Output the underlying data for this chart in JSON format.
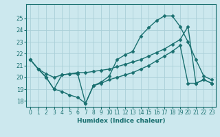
{
  "xlabel": "Humidex (Indice chaleur)",
  "background_color": "#cce8ee",
  "grid_color": "#aacfd8",
  "line_color": "#1a7070",
  "xlim_min": -0.5,
  "xlim_max": 23.5,
  "ylim_min": 17.5,
  "ylim_max": 26.2,
  "yticks": [
    18,
    19,
    20,
    21,
    22,
    23,
    24,
    25
  ],
  "xticks": [
    0,
    1,
    2,
    3,
    4,
    5,
    6,
    7,
    8,
    9,
    10,
    11,
    12,
    13,
    14,
    15,
    16,
    17,
    18,
    19,
    20,
    21,
    22,
    23
  ],
  "curve_top_x": [
    0,
    1,
    2,
    3,
    4,
    5,
    6,
    7,
    8,
    9,
    10,
    11,
    12,
    13,
    14,
    15,
    16,
    17,
    18,
    19,
    20,
    21,
    22,
    23
  ],
  "curve_top_y": [
    21.5,
    20.7,
    20.0,
    19.0,
    20.2,
    20.3,
    20.3,
    17.8,
    19.3,
    19.6,
    20.1,
    21.5,
    21.9,
    22.2,
    23.5,
    24.2,
    24.8,
    25.2,
    25.2,
    24.3,
    23.0,
    21.5,
    20.1,
    19.8
  ],
  "curve_diag_x": [
    0,
    1,
    2,
    3,
    4,
    5,
    6,
    7,
    8,
    9,
    10,
    11,
    12,
    13,
    14,
    15,
    16,
    17,
    18,
    19,
    20,
    21,
    22,
    23
  ],
  "curve_diag_y": [
    21.5,
    20.7,
    20.3,
    20.0,
    20.2,
    20.3,
    20.4,
    20.4,
    20.5,
    20.6,
    20.7,
    20.9,
    21.1,
    21.3,
    21.5,
    21.8,
    22.1,
    22.4,
    22.8,
    23.2,
    24.3,
    19.5,
    19.8,
    19.5
  ],
  "curve_bot_x": [
    0,
    1,
    2,
    3,
    4,
    5,
    6,
    7,
    8,
    9,
    10,
    11,
    12,
    13,
    14,
    15,
    16,
    17,
    18,
    19,
    20,
    21,
    22,
    23
  ],
  "curve_bot_y": [
    21.5,
    20.7,
    20.0,
    19.0,
    18.8,
    18.5,
    18.3,
    17.8,
    19.3,
    19.5,
    19.8,
    20.0,
    20.2,
    20.4,
    20.7,
    21.0,
    21.4,
    21.8,
    22.2,
    22.7,
    19.5,
    19.5,
    19.8,
    19.5
  ]
}
